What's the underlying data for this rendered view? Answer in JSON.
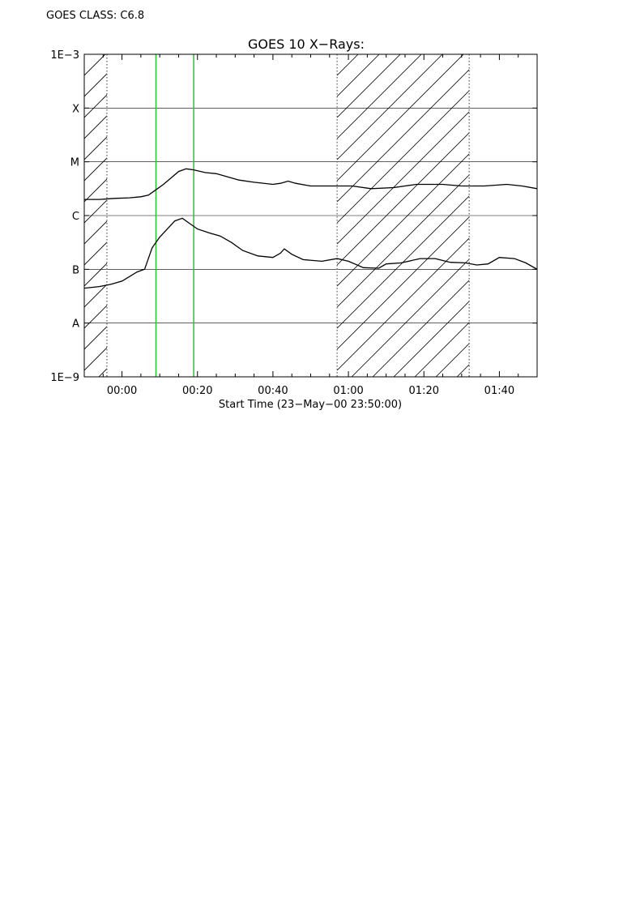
{
  "header": {
    "goes_class": "GOES CLASS: C6.8"
  },
  "chart_data": {
    "type": "line",
    "title": "GOES 10 X−Rays:",
    "xlabel": "Start Time (23−May−00 23:50:00)",
    "ylabel": "",
    "x_unit": "minutes relative to 00:00 (24-May-00)",
    "xlim": [
      -10,
      110
    ],
    "ylim": [
      -9,
      -3
    ],
    "y_scale": "log",
    "x_ticks": [
      {
        "t": 0,
        "label": "00:00"
      },
      {
        "t": 20,
        "label": "00:20"
      },
      {
        "t": 40,
        "label": "00:40"
      },
      {
        "t": 60,
        "label": "01:00"
      },
      {
        "t": 80,
        "label": "01:20"
      },
      {
        "t": 100,
        "label": "01:40"
      }
    ],
    "y_ticks": [
      {
        "v": -3,
        "label": "1E−3"
      },
      {
        "v": -4,
        "label": "X"
      },
      {
        "v": -5,
        "label": "M"
      },
      {
        "v": -6,
        "label": "C"
      },
      {
        "v": -7,
        "label": "B"
      },
      {
        "v": -8,
        "label": "A"
      },
      {
        "v": -9,
        "label": "1E−9"
      }
    ],
    "gridlines_y": [
      -4,
      -5,
      -6,
      -7,
      -8
    ],
    "hatched_intervals": [
      [
        -10,
        -4
      ],
      [
        57,
        92
      ]
    ],
    "dotted_markers": [
      -4,
      57,
      92
    ],
    "green_markers": [
      9,
      19
    ],
    "series": [
      {
        "points": [
          [
            -10,
            -5.7
          ],
          [
            -6,
            -5.7
          ],
          [
            -2,
            -5.68
          ],
          [
            2,
            -5.67
          ],
          [
            5,
            -5.65
          ],
          [
            7,
            -5.62
          ],
          [
            9,
            -5.52
          ],
          [
            11,
            -5.42
          ],
          [
            13,
            -5.3
          ],
          [
            15,
            -5.18
          ],
          [
            17,
            -5.13
          ],
          [
            19,
            -5.15
          ],
          [
            22,
            -5.2
          ],
          [
            25,
            -5.22
          ],
          [
            28,
            -5.28
          ],
          [
            31,
            -5.34
          ],
          [
            35,
            -5.38
          ],
          [
            40,
            -5.42
          ],
          [
            42,
            -5.4
          ],
          [
            44,
            -5.36
          ],
          [
            46,
            -5.4
          ],
          [
            50,
            -5.45
          ],
          [
            57,
            -5.45
          ],
          [
            61,
            -5.45
          ],
          [
            66,
            -5.5
          ],
          [
            72,
            -5.48
          ],
          [
            78,
            -5.42
          ],
          [
            85,
            -5.42
          ],
          [
            90,
            -5.45
          ],
          [
            96,
            -5.45
          ],
          [
            102,
            -5.42
          ],
          [
            106,
            -5.45
          ],
          [
            110,
            -5.5
          ]
        ]
      },
      {
        "points": [
          [
            -10,
            -7.35
          ],
          [
            -6,
            -7.32
          ],
          [
            -3,
            -7.28
          ],
          [
            0,
            -7.22
          ],
          [
            4,
            -7.05
          ],
          [
            6,
            -7.0
          ],
          [
            8,
            -6.6
          ],
          [
            10,
            -6.4
          ],
          [
            12,
            -6.25
          ],
          [
            14,
            -6.1
          ],
          [
            16,
            -6.05
          ],
          [
            18,
            -6.15
          ],
          [
            20,
            -6.25
          ],
          [
            23,
            -6.32
          ],
          [
            26,
            -6.38
          ],
          [
            29,
            -6.5
          ],
          [
            32,
            -6.65
          ],
          [
            36,
            -6.75
          ],
          [
            40,
            -6.78
          ],
          [
            42,
            -6.7
          ],
          [
            43,
            -6.62
          ],
          [
            45,
            -6.72
          ],
          [
            48,
            -6.82
          ],
          [
            53,
            -6.85
          ],
          [
            57,
            -6.8
          ],
          [
            60,
            -6.85
          ],
          [
            64,
            -6.97
          ],
          [
            68,
            -6.98
          ],
          [
            70,
            -6.9
          ],
          [
            74,
            -6.88
          ],
          [
            79,
            -6.8
          ],
          [
            83,
            -6.8
          ],
          [
            87,
            -6.87
          ],
          [
            91,
            -6.88
          ],
          [
            94,
            -6.92
          ],
          [
            97,
            -6.9
          ],
          [
            100,
            -6.78
          ],
          [
            104,
            -6.8
          ],
          [
            107,
            -6.88
          ],
          [
            110,
            -7.0
          ]
        ]
      }
    ]
  }
}
